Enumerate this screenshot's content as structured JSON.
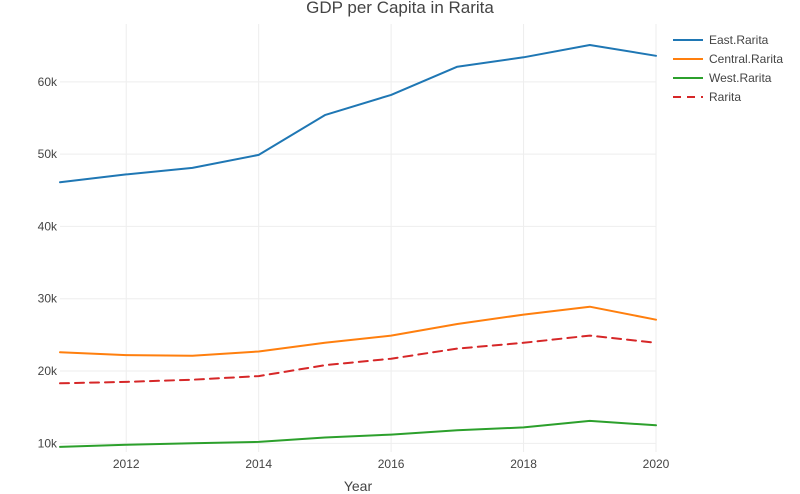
{
  "chart_data": {
    "type": "line",
    "title": "GDP per Capita in Rarita",
    "xlabel": "Year",
    "ylabel": "",
    "x": [
      2011,
      2012,
      2013,
      2014,
      2015,
      2016,
      2017,
      2018,
      2019,
      2020
    ],
    "xlim": [
      2011,
      2020
    ],
    "ylim": [
      8800,
      68000
    ],
    "x_ticks": [
      2012,
      2014,
      2016,
      2018,
      2020
    ],
    "y_ticks": [
      10000,
      20000,
      30000,
      40000,
      50000,
      60000
    ],
    "y_tick_labels": [
      "10k",
      "20k",
      "30k",
      "40k",
      "50k",
      "60k"
    ],
    "grid": true,
    "legend_position": "top-right",
    "series": [
      {
        "name": "East.Rarita",
        "color": "#1f77b4",
        "dash": "solid",
        "values": [
          46100,
          47200,
          48100,
          49900,
          55400,
          58200,
          62100,
          63400,
          65100,
          63600
        ]
      },
      {
        "name": "Central.Rarita",
        "color": "#ff7f0e",
        "dash": "solid",
        "values": [
          22600,
          22200,
          22100,
          22700,
          23900,
          24900,
          26500,
          27800,
          28900,
          27100
        ]
      },
      {
        "name": "West.Rarita",
        "color": "#2ca02c",
        "dash": "solid",
        "values": [
          9500,
          9800,
          10000,
          10200,
          10800,
          11200,
          11800,
          12200,
          13100,
          12500
        ]
      },
      {
        "name": "Rarita",
        "color": "#d62728",
        "dash": "dash",
        "values": [
          18300,
          18500,
          18800,
          19300,
          20800,
          21700,
          23100,
          23900,
          24900,
          23900
        ]
      }
    ]
  }
}
